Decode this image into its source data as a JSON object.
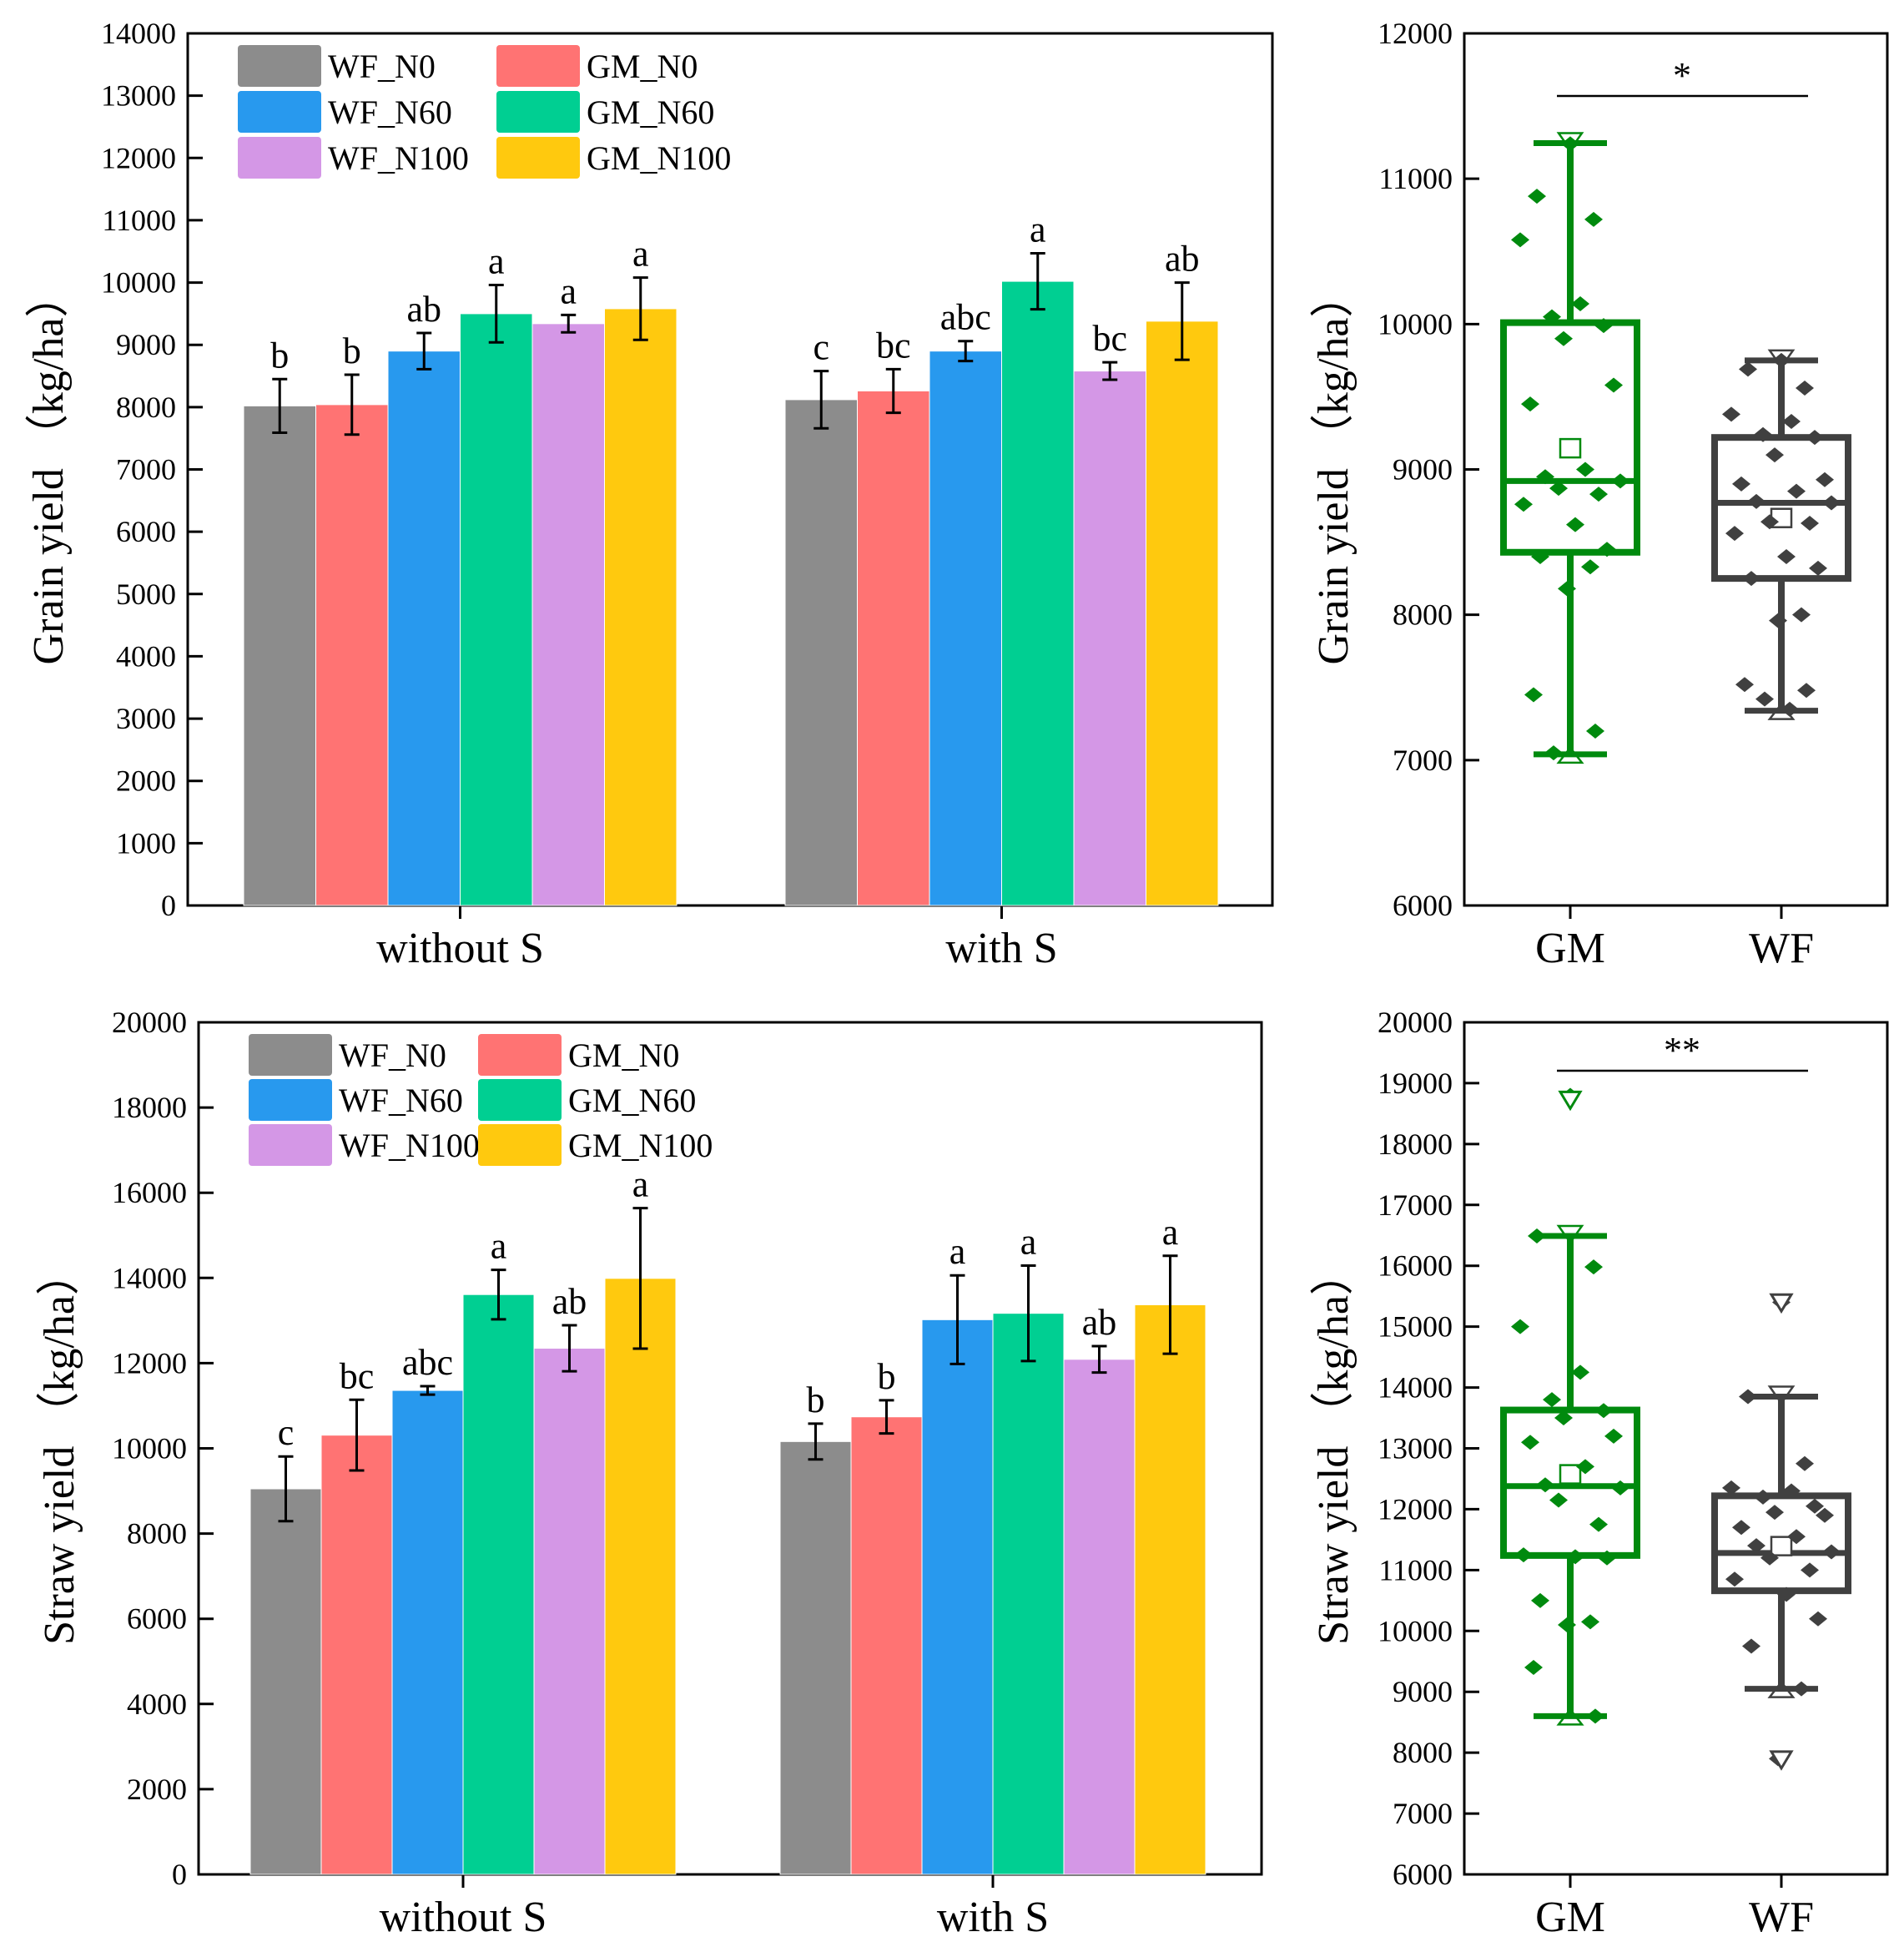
{
  "chart_data": [
    {
      "type": "bar",
      "id": "grain-bar",
      "ylabel": "Grain yield （kg/ha）",
      "ylim": [
        0,
        14000
      ],
      "yticks": [
        0,
        1000,
        2000,
        3000,
        4000,
        5000,
        6000,
        7000,
        8000,
        9000,
        10000,
        11000,
        12000,
        13000,
        14000
      ],
      "categories": [
        "without S",
        "with S"
      ],
      "legend_placement": "top-left",
      "series": [
        {
          "name": "WF_N0",
          "color": "#8c8c8c",
          "values": [
            8020,
            8120
          ],
          "errors": [
            430,
            460
          ],
          "letters": [
            "b",
            "c"
          ]
        },
        {
          "name": "GM_N0",
          "color": "#ff7373",
          "values": [
            8040,
            8260
          ],
          "errors": [
            480,
            350
          ],
          "letters": [
            "b",
            "bc"
          ]
        },
        {
          "name": "WF_N60",
          "color": "#2899ee",
          "values": [
            8900,
            8900
          ],
          "errors": [
            290,
            160
          ],
          "letters": [
            "ab",
            "abc"
          ]
        },
        {
          "name": "GM_N60",
          "color": "#00cf92",
          "values": [
            9500,
            10020
          ],
          "errors": [
            460,
            450
          ],
          "letters": [
            "a",
            "a"
          ]
        },
        {
          "name": "WF_N100",
          "color": "#d497e6",
          "values": [
            9340,
            8580
          ],
          "errors": [
            140,
            140
          ],
          "letters": [
            "a",
            "bc"
          ]
        },
        {
          "name": "GM_N100",
          "color": "#ffc90e",
          "values": [
            9580,
            9380
          ],
          "errors": [
            500,
            620
          ],
          "letters": [
            "a",
            "ab"
          ]
        }
      ]
    },
    {
      "type": "box",
      "id": "grain-box",
      "ylabel": "Grain yield （kg/ha）",
      "ylim": [
        6000,
        12000
      ],
      "yticks": [
        6000,
        7000,
        8000,
        9000,
        10000,
        11000,
        12000
      ],
      "categories": [
        "GM",
        "WF"
      ],
      "significance": "*",
      "boxes": [
        {
          "name": "GM",
          "color": "#008a0e",
          "min": 7040,
          "q1": 8430,
          "median": 8920,
          "q3": 10010,
          "max": 11245,
          "mean": 9140,
          "outliers": [],
          "points": [
            11240,
            10880,
            10720,
            10580,
            10140,
            10050,
            9990,
            9900,
            9580,
            9450,
            9000,
            8950,
            8920,
            8870,
            8830,
            8760,
            8620,
            8450,
            8400,
            8330,
            8180,
            7450,
            7200,
            7050
          ]
        },
        {
          "name": "WF",
          "color": "#404040",
          "min": 7340,
          "q1": 8250,
          "median": 8770,
          "q3": 9220,
          "max": 9750,
          "mean": 8660,
          "outliers": [],
          "points": [
            9750,
            9690,
            9560,
            9380,
            9330,
            9240,
            9220,
            9100,
            8930,
            8900,
            8850,
            8780,
            8770,
            8640,
            8630,
            8560,
            8400,
            8320,
            8250,
            8000,
            7960,
            7520,
            7480,
            7420,
            7350
          ]
        }
      ]
    },
    {
      "type": "bar",
      "id": "straw-bar",
      "ylabel": "Straw yield （kg/ha）",
      "ylim": [
        0,
        20000
      ],
      "yticks": [
        0,
        2000,
        4000,
        6000,
        8000,
        10000,
        12000,
        14000,
        16000,
        18000,
        20000
      ],
      "categories": [
        "without S",
        "with S"
      ],
      "legend_placement": "top-left",
      "series": [
        {
          "name": "WF_N0",
          "color": "#8c8c8c",
          "values": [
            9050,
            10160
          ],
          "errors": [
            760,
            420
          ],
          "letters": [
            "c",
            "b"
          ]
        },
        {
          "name": "GM_N0",
          "color": "#ff7373",
          "values": [
            10310,
            10740
          ],
          "errors": [
            830,
            390
          ],
          "letters": [
            "bc",
            "b"
          ]
        },
        {
          "name": "WF_N60",
          "color": "#2899ee",
          "values": [
            11360,
            13020
          ],
          "errors": [
            100,
            1040
          ],
          "letters": [
            "abc",
            "a"
          ]
        },
        {
          "name": "GM_N60",
          "color": "#00cf92",
          "values": [
            13610,
            13170
          ],
          "errors": [
            580,
            1120
          ],
          "letters": [
            "a",
            "a"
          ]
        },
        {
          "name": "WF_N100",
          "color": "#d497e6",
          "values": [
            12350,
            12090
          ],
          "errors": [
            540,
            310
          ],
          "letters": [
            "ab",
            "ab"
          ]
        },
        {
          "name": "GM_N100",
          "color": "#ffc90e",
          "values": [
            13990,
            13370
          ],
          "errors": [
            1650,
            1150
          ],
          "letters": [
            "a",
            "a"
          ]
        }
      ]
    },
    {
      "type": "box",
      "id": "straw-box",
      "ylabel": "Straw yield （kg/ha）",
      "ylim": [
        6000,
        20000
      ],
      "yticks": [
        6000,
        7000,
        8000,
        9000,
        10000,
        11000,
        12000,
        13000,
        14000,
        15000,
        16000,
        17000,
        18000,
        19000,
        20000
      ],
      "categories": [
        "GM",
        "WF"
      ],
      "significance": "**",
      "boxes": [
        {
          "name": "GM",
          "color": "#008a0e",
          "min": 8600,
          "q1": 11240,
          "median": 12380,
          "q3": 13630,
          "max": 16490,
          "mean": 12560,
          "outliers": [
            18720
          ],
          "points": [
            18800,
            16490,
            15980,
            15000,
            14250,
            13800,
            13620,
            13500,
            13200,
            13100,
            12700,
            12400,
            12350,
            12150,
            11750,
            11250,
            11220,
            11200,
            10500,
            10150,
            10100,
            9400,
            8600
          ]
        },
        {
          "name": "WF",
          "color": "#404040",
          "min": 9050,
          "q1": 10660,
          "median": 11280,
          "q3": 12220,
          "max": 13850,
          "mean": 11380,
          "outliers": [
            15390,
            7880
          ],
          "points": [
            15400,
            13850,
            12750,
            12350,
            12300,
            12200,
            12050,
            11950,
            11900,
            11700,
            11550,
            11400,
            11300,
            11200,
            11000,
            10850,
            10600,
            10200,
            9750,
            9050,
            7900
          ]
        }
      ]
    }
  ]
}
